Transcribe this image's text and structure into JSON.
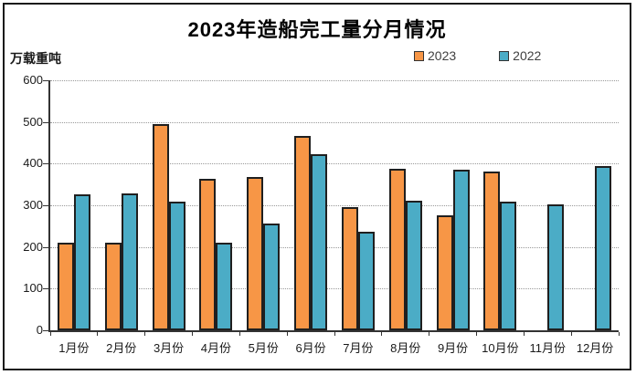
{
  "title": "2023年造船完工量分月情况",
  "unit_label": "万载重吨",
  "colors": {
    "series_2023": "#F79646",
    "series_2022": "#4BACC6",
    "bar_border": "#1f1f1f",
    "gridline": "#999999",
    "axis": "#333333",
    "frame_border": "#1a1a1a",
    "background": "#ffffff",
    "text": "#1a1a1a"
  },
  "chart_data": {
    "type": "bar",
    "title": "2023年造船完工量分月情况",
    "ylabel": "万载重吨",
    "xlabel": "",
    "categories": [
      "1月份",
      "2月份",
      "3月份",
      "4月份",
      "5月份",
      "6月份",
      "7月份",
      "8月份",
      "9月份",
      "10月份",
      "11月份",
      "12月份"
    ],
    "series": [
      {
        "name": "2023",
        "color": "#F79646",
        "values": [
          211,
          211,
          494,
          364,
          368,
          466,
          295,
          388,
          277,
          380,
          null,
          null
        ]
      },
      {
        "name": "2022",
        "color": "#4BACC6",
        "values": [
          326,
          328,
          308,
          210,
          257,
          422,
          236,
          310,
          386,
          308,
          303,
          395
        ]
      }
    ],
    "ylim": [
      0,
      600
    ],
    "ytick_step": 100,
    "grid": "horizontal-dotted",
    "legend_position": "top-right"
  }
}
